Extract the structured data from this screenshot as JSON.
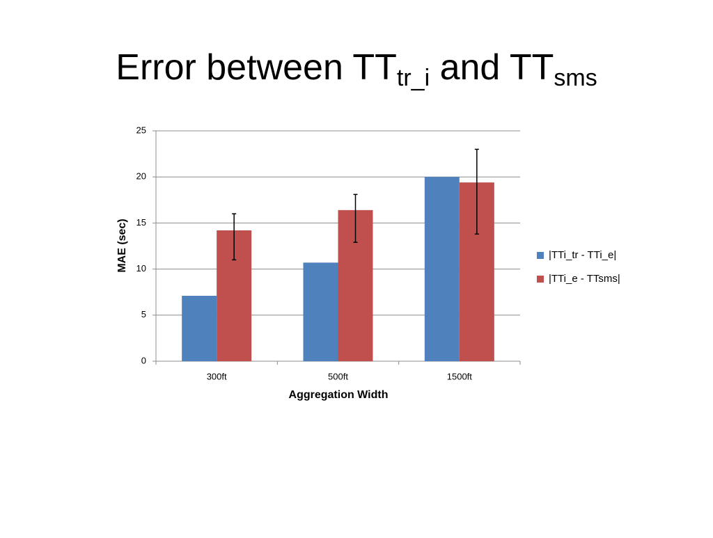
{
  "chart_data": {
    "type": "bar",
    "title": [
      {
        "text": "Error between TT"
      },
      {
        "text": "tr_i",
        "subscript": true
      },
      {
        "text": " and TT"
      },
      {
        "text": "sms",
        "subscript": true
      }
    ],
    "x_label": "Aggregation Width",
    "y_label": "MAE (sec)",
    "categories": [
      "300ft",
      "500ft",
      "1500ft"
    ],
    "series": [
      {
        "name": "|TTi_tr - TTi_e|",
        "color": "#4f81bd",
        "values": [
          7.1,
          10.7,
          20.0
        ]
      },
      {
        "name": "|TTi_e - TTsms|",
        "color": "#c0504d",
        "values": [
          14.2,
          16.4,
          19.4
        ],
        "errors_minus": [
          3.2,
          3.5,
          5.6
        ],
        "errors_plus": [
          1.8,
          1.7,
          3.6
        ]
      }
    ],
    "ylim": [
      0,
      25
    ],
    "yticks": [
      0,
      5,
      10,
      15,
      20,
      25
    ],
    "grid": true,
    "legend": "right"
  }
}
